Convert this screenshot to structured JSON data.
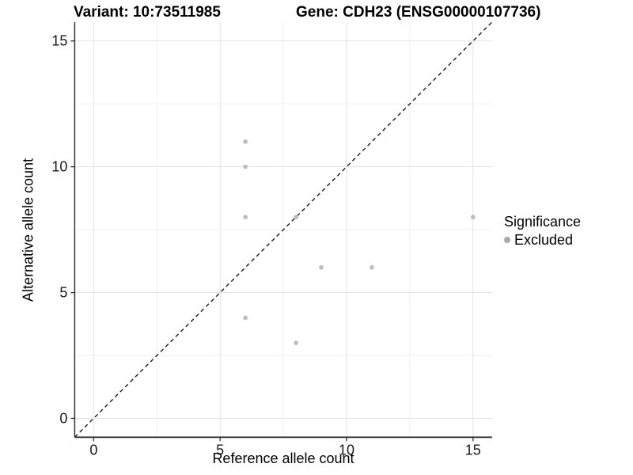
{
  "titles": {
    "left": "Variant: 10:73511985",
    "right": "Gene: CDH23 (ENSG00000107736)"
  },
  "axes": {
    "x_label": "Reference allele count",
    "y_label": "Alternative allele count"
  },
  "legend": {
    "title": "Significance",
    "items": [
      {
        "label": "Excluded",
        "color": "#a9a9a9"
      }
    ],
    "position": "right"
  },
  "colors": {
    "point": "#bcbcbc",
    "identity_line": "#1a1a1a",
    "grid_major": "#e3e3e3",
    "grid_minor": "#efefef",
    "axis_line": "#333333",
    "tick_text": "#1a1a1a"
  },
  "chart_data": {
    "type": "scatter",
    "title": "Variant: 10:73511985 — Gene: CDH23 (ENSG00000107736)",
    "xlabel": "Reference allele count",
    "ylabel": "Alternative allele count",
    "xlim": [
      -0.75,
      15.75
    ],
    "ylim": [
      -0.75,
      15.75
    ],
    "x_ticks": [
      0,
      5,
      10,
      15
    ],
    "y_ticks": [
      0,
      5,
      10,
      15
    ],
    "x_minor_ticks": [
      2.5,
      7.5,
      12.5
    ],
    "y_minor_ticks": [
      2.5,
      7.5,
      12.5
    ],
    "grid": true,
    "legend_position": "right",
    "identity_line": {
      "show": true,
      "style": "dashed",
      "equation": "y = x"
    },
    "series": [
      {
        "name": "Excluded",
        "color": "#bcbcbc",
        "points": [
          {
            "x": 6,
            "y": 11
          },
          {
            "x": 6,
            "y": 10
          },
          {
            "x": 6,
            "y": 8
          },
          {
            "x": 6,
            "y": 4
          },
          {
            "x": 8,
            "y": 8
          },
          {
            "x": 8,
            "y": 3
          },
          {
            "x": 9,
            "y": 6
          },
          {
            "x": 11,
            "y": 6
          },
          {
            "x": 15,
            "y": 8
          }
        ]
      }
    ]
  }
}
